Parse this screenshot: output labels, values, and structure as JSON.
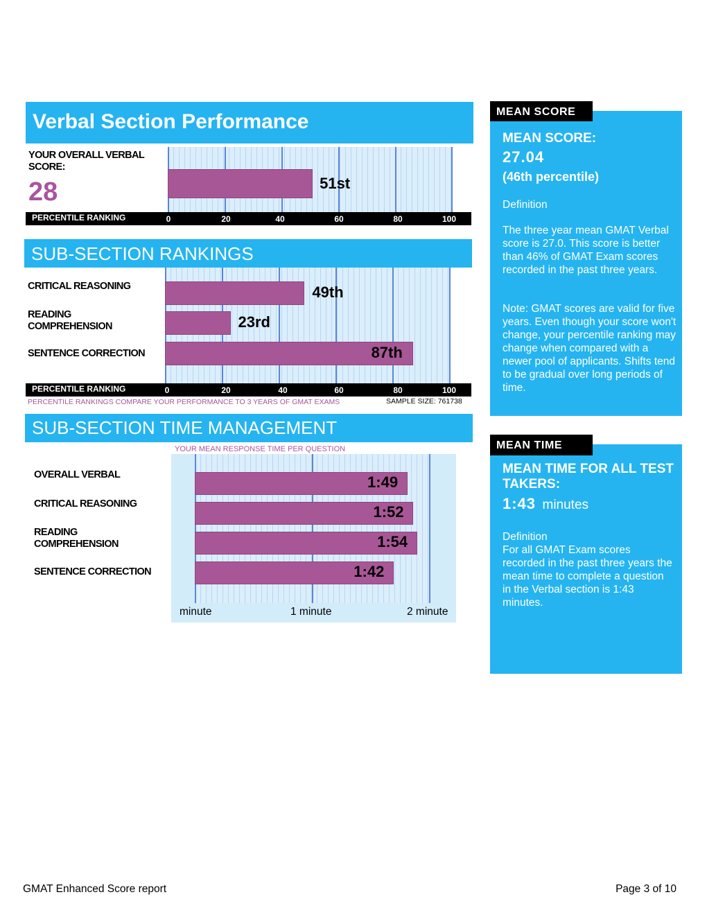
{
  "verbal": {
    "title": "Verbal Section Performance",
    "score_label": "YOUR OVERALL VERBAL SCORE:",
    "score": "28",
    "percentile": 51,
    "percentile_label": "51st"
  },
  "axis": {
    "label": "PERCENTILE RANKING",
    "ticks": [
      "0",
      "20",
      "40",
      "60",
      "80",
      "100"
    ]
  },
  "subsection": {
    "title": "SUB-SECTION RANKINGS",
    "items": [
      {
        "name": "CRITICAL REASONING",
        "value": 49,
        "label": "49th"
      },
      {
        "name": "READING COMPREHENSION",
        "value": 23,
        "label": "23rd"
      },
      {
        "name": "SENTENCE CORRECTION",
        "value": 87,
        "label": "87th"
      }
    ],
    "note": "PERCENTILE RANKINGS COMPARE YOUR PERFORMANCE TO 3 YEARS OF GMAT EXAMS",
    "sample_size": "SAMPLE SIZE: 761738"
  },
  "time": {
    "title": "SUB-SECTION TIME MANAGEMENT",
    "caption": "YOUR MEAN RESPONSE TIME PER QUESTION",
    "items": [
      {
        "name": "OVERALL VERBAL",
        "seconds": 109,
        "label": "1:49"
      },
      {
        "name": "CRITICAL REASONING",
        "seconds": 112,
        "label": "1:52"
      },
      {
        "name": "READING COMPREHENSION",
        "seconds": 114,
        "label": "1:54"
      },
      {
        "name": "SENTENCE CORRECTION",
        "seconds": 102,
        "label": "1:42"
      }
    ],
    "axis_labels": [
      "minute",
      "1 minute",
      "2 minute"
    ]
  },
  "mean_score_panel": {
    "tab": "MEAN SCORE",
    "heading": "MEAN SCORE:",
    "value": "27.04",
    "percentile": "(46th percentile)",
    "definition_label": "Definition",
    "paragraph1": "The three year mean GMAT Verbal  score is 27.0. This score is better than 46% of GMAT Exam scores recorded in the past three years.",
    "paragraph2": "Note:  GMAT scores are valid for five years. Even though your score won't change, your percentile ranking may change when compared with a newer pool of applicants.  Shifts tend to be gradual over long periods of time."
  },
  "mean_time_panel": {
    "tab": "MEAN TIME",
    "heading": "MEAN TIME FOR ALL TEST TAKERS:",
    "value": "1:43",
    "unit": "minutes",
    "definition_label": "Definition",
    "paragraph": "For all GMAT Exam scores recorded in the past three years the mean time to complete a question in the Verbal section is 1:43 minutes."
  },
  "footer": {
    "left": "GMAT Enhanced Score report",
    "right": "Page 3 of 10"
  },
  "colors": {
    "accent_blue": "#25b4f0",
    "bar_purple": "#a85796",
    "score_purple": "#a855a0"
  }
}
